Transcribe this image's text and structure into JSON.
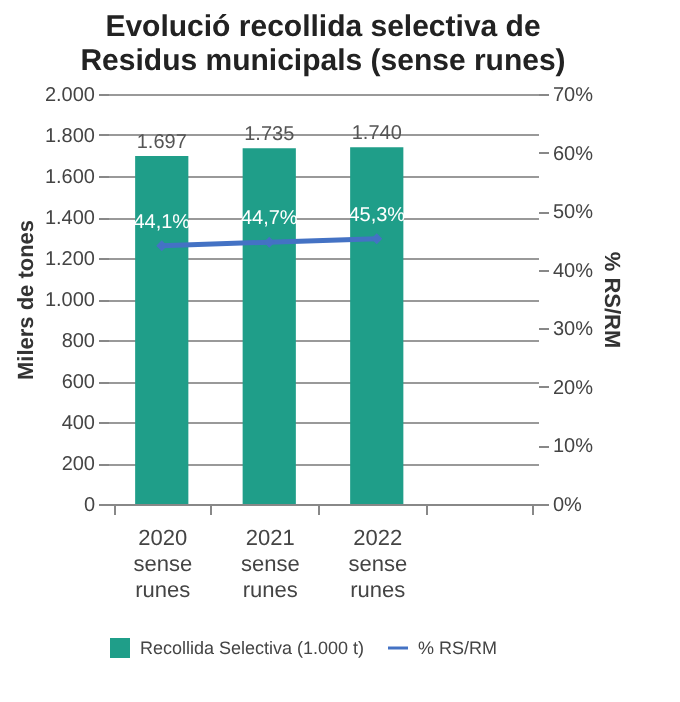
{
  "chart_data": {
    "type": "bar",
    "title": "Evolució recollida selectiva de Residus municipals (sense runes)",
    "categories": [
      "2020 sense runes",
      "2021 sense runes",
      "2022 sense runes",
      null
    ],
    "series": [
      {
        "name": "Recollida Selectiva  (1.000 t)",
        "color": "#1f9e89",
        "values": [
          1697,
          1735,
          1740,
          null
        ],
        "value_labels": [
          "1.697",
          "1.735",
          "1.740",
          null
        ]
      },
      {
        "name": "% RS/RM",
        "type": "line",
        "axis": "y2",
        "color": "#4472c4",
        "marker": "diamond",
        "values": [
          44.1,
          44.7,
          45.3,
          null
        ],
        "value_labels": [
          "44,1%",
          "44,7%",
          "45,3%",
          null
        ]
      }
    ],
    "ylabel": "Milers de tones",
    "y2label": "% RS/RM",
    "ylim": [
      0,
      2000
    ],
    "yticks": [
      {
        "value": 0,
        "label": "0"
      },
      {
        "value": 200,
        "label": "200"
      },
      {
        "value": 400,
        "label": "400"
      },
      {
        "value": 600,
        "label": "600"
      },
      {
        "value": 800,
        "label": "800"
      },
      {
        "value": 1000,
        "label": "1.000"
      },
      {
        "value": 1200,
        "label": "1.200"
      },
      {
        "value": 1400,
        "label": "1.400"
      },
      {
        "value": 1600,
        "label": "1.600"
      },
      {
        "value": 1800,
        "label": "1.800"
      },
      {
        "value": 2000,
        "label": "2.000"
      }
    ],
    "y2lim": [
      0,
      70
    ],
    "y2ticks": [
      {
        "value": 0,
        "label": "0%"
      },
      {
        "value": 10,
        "label": "10%"
      },
      {
        "value": 20,
        "label": "20%"
      },
      {
        "value": 30,
        "label": "30%"
      },
      {
        "value": 40,
        "label": "40%"
      },
      {
        "value": 50,
        "label": "50%"
      },
      {
        "value": 60,
        "label": "60%"
      },
      {
        "value": 70,
        "label": "70%"
      }
    ],
    "grid": "y",
    "legend": "bottom"
  }
}
